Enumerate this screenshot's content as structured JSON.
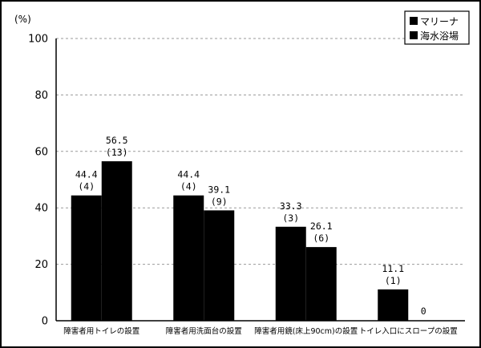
{
  "chart_data": {
    "type": "bar",
    "unit_label": "(%)",
    "categories": [
      "障害者用トイレの設置",
      "障害者用洗面台の設置",
      "障害者用鏡(床上90cm)の設置",
      "トイレ入口にスロープの設置"
    ],
    "series": [
      {
        "name": "マリーナ",
        "values": [
          44.4,
          44.4,
          33.3,
          11.1
        ],
        "counts": [
          "(4)",
          "(4)",
          "(3)",
          "(1)"
        ],
        "labels": [
          "44.4",
          "44.4",
          "33.3",
          "11.1"
        ]
      },
      {
        "name": "海水浴場",
        "values": [
          56.5,
          39.1,
          26.1,
          0
        ],
        "counts": [
          "(13)",
          "(9)",
          "(6)",
          ""
        ],
        "labels": [
          "56.5",
          "39.1",
          "26.1",
          "0"
        ]
      }
    ],
    "ylim": [
      0,
      100
    ],
    "yticks": [
      0,
      20,
      40,
      60,
      80,
      100
    ],
    "ytick_labels": [
      "0",
      "20",
      "40",
      "60",
      "80",
      "100"
    ],
    "grid": true,
    "legend_position": "top-right",
    "colors": {
      "bar": "#000000"
    }
  }
}
